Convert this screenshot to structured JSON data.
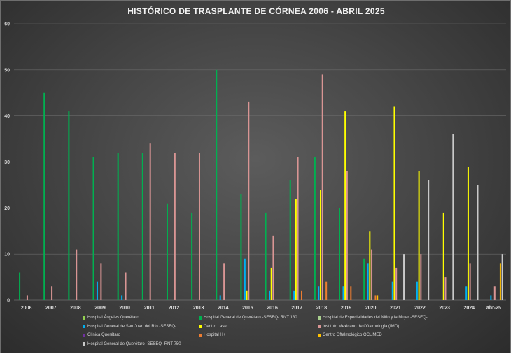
{
  "chart_data": {
    "type": "bar",
    "title": "HISTÓRICO DE TRASPLANTE DE CÓRNEA 2006 - ABRIL 2025",
    "categories": [
      "2006",
      "2007",
      "2008",
      "2009",
      "2010",
      "2011",
      "2012",
      "2013",
      "2014",
      "2015",
      "2016",
      "2017",
      "2018",
      "2019",
      "2020",
      "2021",
      "2022",
      "2023",
      "2024",
      "abr-25"
    ],
    "ylim": [
      0,
      60
    ],
    "yticks": [
      0,
      10,
      20,
      30,
      40,
      50,
      60
    ],
    "grid": true,
    "legend_position": "bottom",
    "series": [
      {
        "name": "Hospital Ángeles Querétaro",
        "color": "#92d050",
        "values": [
          0,
          0,
          0,
          0,
          0,
          0,
          0,
          0,
          0,
          0,
          0,
          0,
          0,
          0,
          0,
          0,
          0,
          0,
          0,
          0
        ]
      },
      {
        "name": "Hospital General de Querétaro -SESEQ- RNT 130",
        "color": "#00b050",
        "values": [
          6,
          45,
          41,
          31,
          32,
          32,
          21,
          19,
          50,
          23,
          19,
          26,
          31,
          20,
          9,
          0,
          0,
          0,
          0,
          0
        ]
      },
      {
        "name": "Hospital de Especialidades del Niño y la Mujer -SESEQ-",
        "color": "#a9d08e",
        "values": [
          0,
          0,
          0,
          0,
          0,
          0,
          0,
          0,
          0,
          0,
          0,
          0,
          0,
          0,
          0,
          0,
          0,
          0,
          0,
          0
        ]
      },
      {
        "name": "Hospital General de San Juan del Río -SESEQ-",
        "color": "#00b0f0",
        "values": [
          0,
          0,
          0,
          4,
          1,
          0,
          0,
          0,
          1,
          9,
          2,
          2,
          3,
          3,
          8,
          4,
          4,
          0,
          3,
          1
        ]
      },
      {
        "name": "Centro Laser",
        "color": "#ffff00",
        "values": [
          0,
          0,
          0,
          0,
          0,
          0,
          0,
          0,
          0,
          2,
          7,
          22,
          24,
          41,
          15,
          42,
          28,
          19,
          29,
          0
        ]
      },
      {
        "name": "Instituto Mexicano de Oftalmología (IMO)",
        "color": "#d99594",
        "values": [
          1,
          3,
          11,
          8,
          6,
          34,
          32,
          32,
          8,
          43,
          14,
          31,
          49,
          28,
          11,
          7,
          10,
          5,
          8,
          3
        ]
      },
      {
        "name": "Clínica Querétaro",
        "color": "#7030a0",
        "values": [
          0,
          0,
          0,
          0,
          0,
          0,
          0,
          0,
          0,
          0,
          0,
          0,
          0,
          0,
          0,
          0,
          0,
          0,
          0,
          0
        ]
      },
      {
        "name": "Hospital H+",
        "color": "#ed7d31",
        "values": [
          0,
          0,
          0,
          0,
          0,
          0,
          0,
          0,
          0,
          0,
          0,
          2,
          4,
          3,
          1,
          0,
          0,
          0,
          0,
          0
        ]
      },
      {
        "name": "Centro Oftalmológico OCUMED",
        "color": "#ffc000",
        "values": [
          0,
          0,
          0,
          0,
          0,
          0,
          0,
          0,
          0,
          0,
          0,
          0,
          0,
          0,
          1,
          0,
          0,
          0,
          0,
          8
        ]
      },
      {
        "name": "Hospital General de Querétaro -SESEQ- RNT 750",
        "color": "#c9c9c9",
        "values": [
          0,
          0,
          0,
          0,
          0,
          0,
          0,
          0,
          0,
          0,
          0,
          0,
          0,
          0,
          0,
          10,
          26,
          36,
          25,
          10
        ]
      }
    ]
  }
}
